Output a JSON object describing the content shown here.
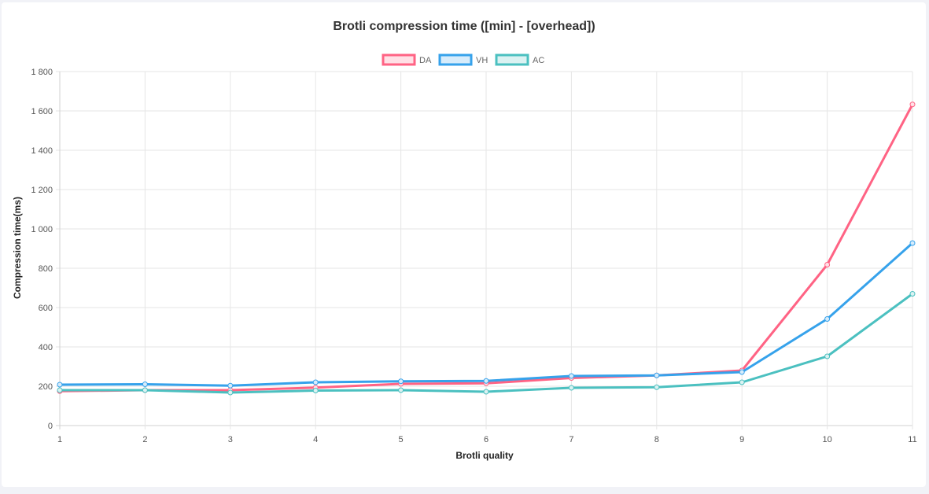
{
  "chart_data": {
    "type": "line",
    "title": "Brotli compression time ([min] - [overhead])",
    "xlabel": "Brotli quality",
    "ylabel": "Compression time(ms)",
    "x": [
      1,
      2,
      3,
      4,
      5,
      6,
      7,
      8,
      9,
      10,
      11
    ],
    "ylim": [
      0,
      1800
    ],
    "yticks": [
      0,
      200,
      400,
      600,
      800,
      1000,
      1200,
      1400,
      1600,
      1800
    ],
    "ytick_labels": [
      "0",
      "200",
      "400",
      "600",
      "800",
      "1 000",
      "1 200",
      "1 400",
      "1 600",
      "1 800"
    ],
    "grid": true,
    "legend_position": "top",
    "series": [
      {
        "name": "DA",
        "color": "#ff6384",
        "fill": "#ffe0e6",
        "values": [
          175,
          180,
          180,
          193,
          212,
          215,
          242,
          255,
          280,
          818,
          1633
        ]
      },
      {
        "name": "VH",
        "color": "#36a2eb",
        "fill": "#d7ecfb",
        "values": [
          208,
          210,
          203,
          220,
          225,
          227,
          252,
          255,
          272,
          542,
          928
        ]
      },
      {
        "name": "AC",
        "color": "#4bc0c0",
        "fill": "#dbf2f2",
        "values": [
          180,
          180,
          168,
          178,
          180,
          172,
          192,
          195,
          220,
          352,
          670
        ]
      }
    ]
  }
}
